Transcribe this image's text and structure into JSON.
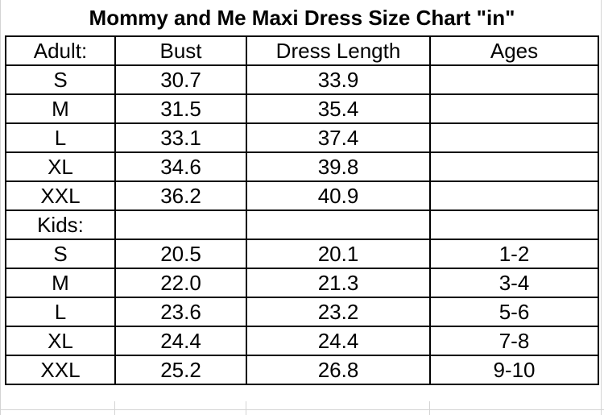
{
  "header": {
    "title": "Mommy and Me Maxi Dress Size Chart \"in\""
  },
  "table": {
    "columns": [
      "Adult:",
      "Bust",
      "Dress Length",
      "Ages"
    ],
    "rows": [
      [
        "S",
        "30.7",
        "33.9",
        null
      ],
      [
        "M",
        "31.5",
        "35.4",
        null
      ],
      [
        "L",
        "33.1",
        "37.4",
        null
      ],
      [
        "XL",
        "34.6",
        "39.8",
        null
      ],
      [
        "XXL",
        "36.2",
        "40.9",
        null
      ],
      [
        "Kids:",
        null,
        null,
        null
      ],
      [
        "S",
        "20.5",
        "20.1",
        "1-2"
      ],
      [
        "M",
        "22.0",
        "21.3",
        "3-4"
      ],
      [
        "L",
        "23.6",
        "23.2",
        "5-6"
      ],
      [
        "XL",
        "24.4",
        "24.4",
        "7-8"
      ],
      [
        "XXL",
        "25.2",
        "26.8",
        "9-10"
      ]
    ]
  }
}
